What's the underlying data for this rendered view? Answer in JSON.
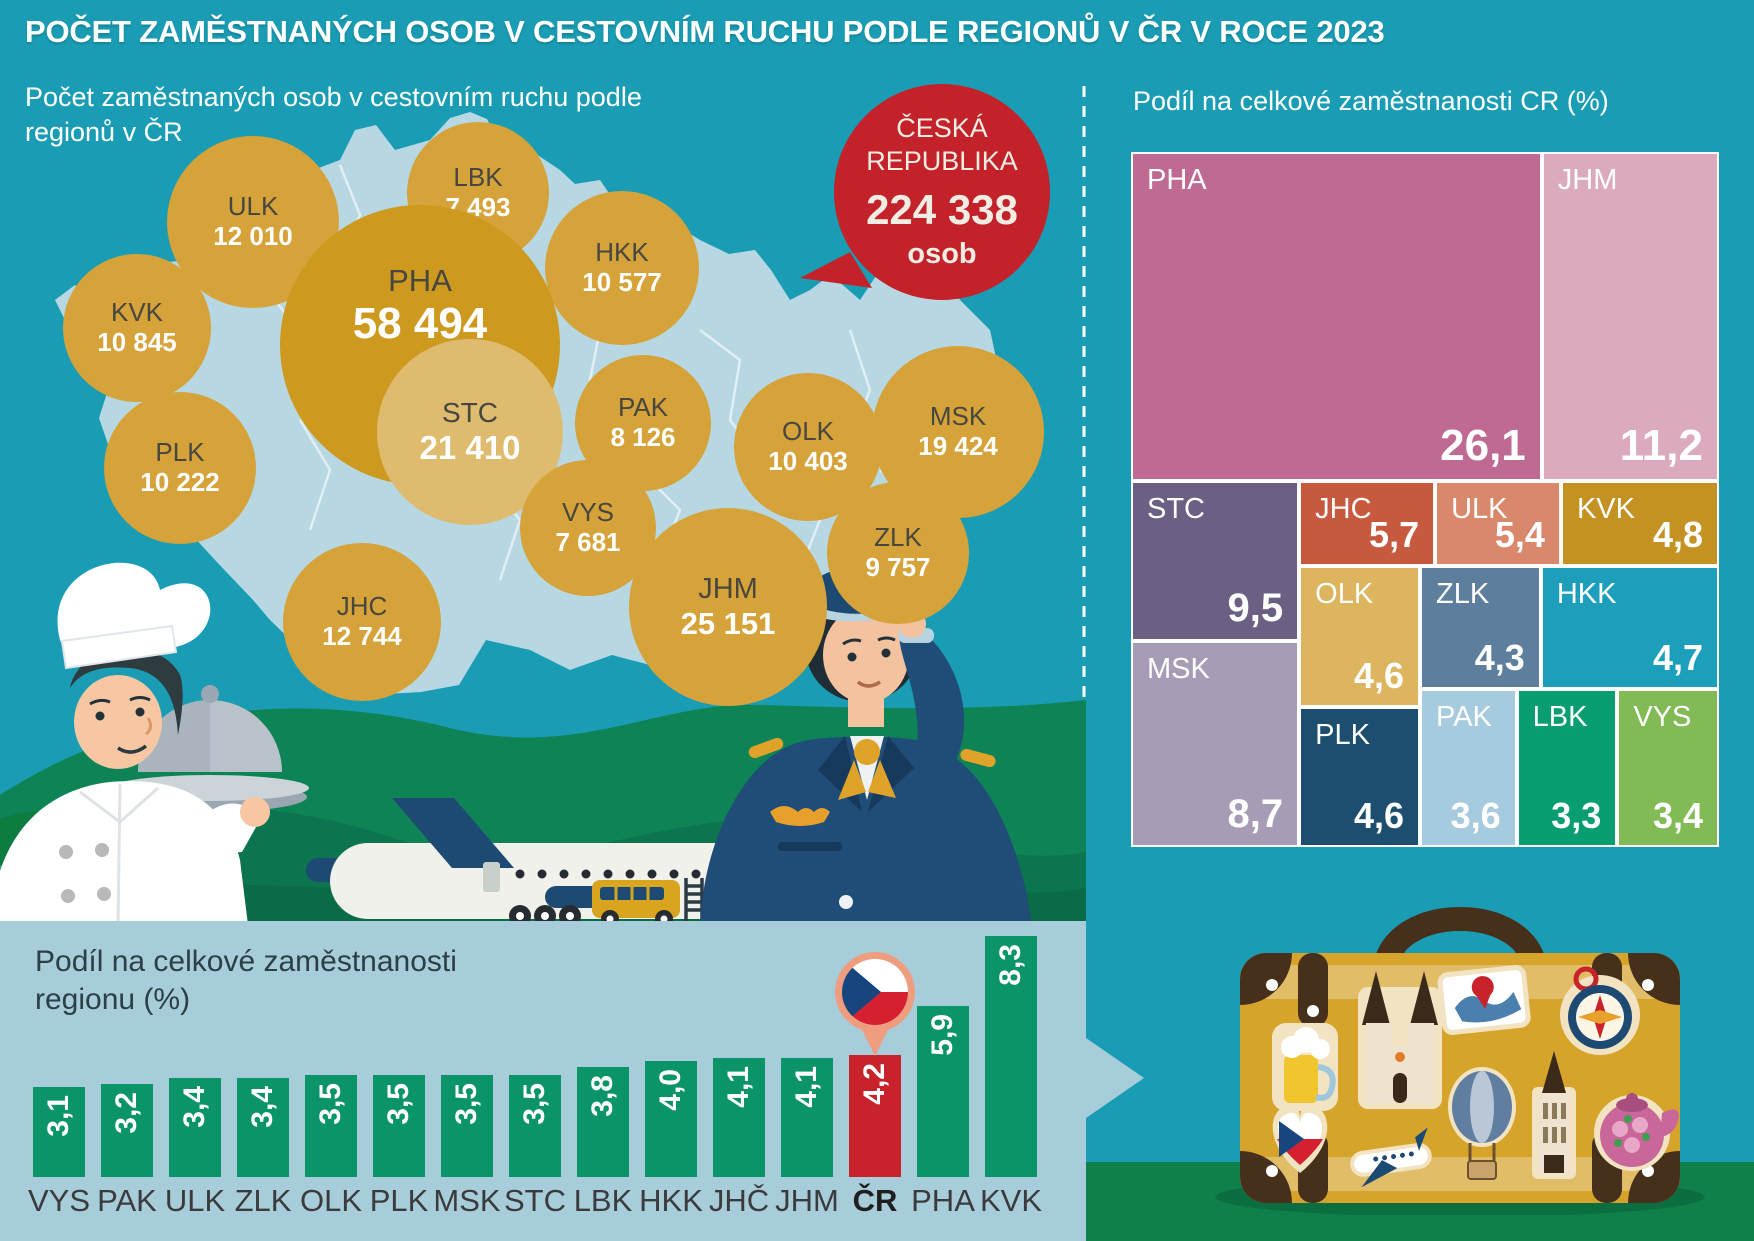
{
  "header": {
    "title": "POČET ZAMĚSTNANÝCH OSOB V CESTOVNÍM RUCHU PODLE REGIONŮ V ČR V ROCE 2023"
  },
  "map_section": {
    "subtitle_line1": "Počet zaměstnaných osob v cestovním ruchu podle",
    "subtitle_line2": "regionů v ČR",
    "total_bubble": {
      "line1": "ČESKÁ",
      "line2": "REPUBLIKA",
      "value": "224 338",
      "unit": "osob",
      "color": "#c3222a"
    },
    "colors": {
      "bubble": "#d5a339",
      "bubble_pha": "#cd9a1f",
      "bubble_stc": "#debb6e",
      "bubble_label": "#47463f",
      "bubble_value": "#ffffff"
    },
    "bubbles": [
      {
        "code": "KVK",
        "value": "10 845"
      },
      {
        "code": "ULK",
        "value": "12 010"
      },
      {
        "code": "LBK",
        "value": "7 493"
      },
      {
        "code": "HKK",
        "value": "10 577"
      },
      {
        "code": "PHA",
        "value": "58 494"
      },
      {
        "code": "STC",
        "value": "21 410"
      },
      {
        "code": "PLK",
        "value": "10 222"
      },
      {
        "code": "PAK",
        "value": "8 126"
      },
      {
        "code": "OLK",
        "value": "10 403"
      },
      {
        "code": "MSK",
        "value": "19 424"
      },
      {
        "code": "VYS",
        "value": "7 681"
      },
      {
        "code": "ZLK",
        "value": "9 757"
      },
      {
        "code": "JHC",
        "value": "12 744"
      },
      {
        "code": "JHM",
        "value": "25 151"
      }
    ]
  },
  "treemap_section": {
    "title": "Podíl na celkové zaměstnanosti CR (%)",
    "items": [
      {
        "code": "PHA",
        "value": "26,1",
        "color": "#bf6a92"
      },
      {
        "code": "JHM",
        "value": "11,2",
        "color": "#dcaabf"
      },
      {
        "code": "STC",
        "value": "9,5",
        "color": "#6b6084"
      },
      {
        "code": "MSK",
        "value": "8,7",
        "color": "#a79cb5"
      },
      {
        "code": "JHC",
        "value": "5,7",
        "color": "#c75a3e"
      },
      {
        "code": "ULK",
        "value": "5,4",
        "color": "#d9886c"
      },
      {
        "code": "KVK",
        "value": "4,8",
        "color": "#c49222"
      },
      {
        "code": "OLK",
        "value": "4,6",
        "color": "#dcb55e"
      },
      {
        "code": "ZLK",
        "value": "4,3",
        "color": "#5d7e9c"
      },
      {
        "code": "HKK",
        "value": "4,7",
        "color": "#1d9fbc"
      },
      {
        "code": "PLK",
        "value": "4,6",
        "color": "#1d4e70"
      },
      {
        "code": "PAK",
        "value": "3,6",
        "color": "#a7cbde"
      },
      {
        "code": "LBK",
        "value": "3,3",
        "color": "#089e72"
      },
      {
        "code": "VYS",
        "value": "3,4",
        "color": "#82bb55"
      }
    ]
  },
  "bar_section": {
    "title_line1": "Podíl na celkové zaměstnanosti",
    "title_line2": "regionu (%)",
    "bar_color": "#0b9468",
    "highlight_color": "#c8232b",
    "bars": [
      {
        "label": "VYS",
        "display": "3,1",
        "value": 3.1
      },
      {
        "label": "PAK",
        "display": "3,2",
        "value": 3.2
      },
      {
        "label": "ULK",
        "display": "3,4",
        "value": 3.4
      },
      {
        "label": "ZLK",
        "display": "3,4",
        "value": 3.4
      },
      {
        "label": "OLK",
        "display": "3,5",
        "value": 3.5
      },
      {
        "label": "PLK",
        "display": "3,5",
        "value": 3.5
      },
      {
        "label": "MSK",
        "display": "3,5",
        "value": 3.5
      },
      {
        "label": "STC",
        "display": "3,5",
        "value": 3.5
      },
      {
        "label": "LBK",
        "display": "3,8",
        "value": 3.8
      },
      {
        "label": "HKK",
        "display": "4,0",
        "value": 4.0
      },
      {
        "label": "JHČ",
        "display": "4,1",
        "value": 4.1
      },
      {
        "label": "JHM",
        "display": "4,1",
        "value": 4.1
      },
      {
        "label": "ČR",
        "display": "4,2",
        "value": 4.2,
        "highlight": true
      },
      {
        "label": "PHA",
        "display": "5,9",
        "value": 5.9
      },
      {
        "label": "KVK",
        "display": "8,3",
        "value": 8.3
      }
    ]
  },
  "chart_data": [
    {
      "type": "bubble-map",
      "title": "Počet zaměstnaných osob v cestovním ruchu podle regionů v ČR",
      "unit": "osob",
      "total": {
        "label": "ČESKÁ REPUBLIKA",
        "value": 224338
      },
      "points": [
        {
          "region": "PHA",
          "value": 58494
        },
        {
          "region": "STC",
          "value": 21410
        },
        {
          "region": "JHM",
          "value": 25151
        },
        {
          "region": "MSK",
          "value": 19424
        },
        {
          "region": "JHC",
          "value": 12744
        },
        {
          "region": "ULK",
          "value": 12010
        },
        {
          "region": "KVK",
          "value": 10845
        },
        {
          "region": "HKK",
          "value": 10577
        },
        {
          "region": "OLK",
          "value": 10403
        },
        {
          "region": "PLK",
          "value": 10222
        },
        {
          "region": "ZLK",
          "value": 9757
        },
        {
          "region": "PAK",
          "value": 8126
        },
        {
          "region": "VYS",
          "value": 7681
        },
        {
          "region": "LBK",
          "value": 7493
        }
      ]
    },
    {
      "type": "treemap",
      "title": "Podíl na celkové zaměstnanosti CR (%)",
      "points": [
        {
          "region": "PHA",
          "value": 26.1
        },
        {
          "region": "JHM",
          "value": 11.2
        },
        {
          "region": "STC",
          "value": 9.5
        },
        {
          "region": "MSK",
          "value": 8.7
        },
        {
          "region": "JHC",
          "value": 5.7
        },
        {
          "region": "ULK",
          "value": 5.4
        },
        {
          "region": "KVK",
          "value": 4.8
        },
        {
          "region": "HKK",
          "value": 4.7
        },
        {
          "region": "OLK",
          "value": 4.6
        },
        {
          "region": "PLK",
          "value": 4.6
        },
        {
          "region": "ZLK",
          "value": 4.3
        },
        {
          "region": "PAK",
          "value": 3.6
        },
        {
          "region": "VYS",
          "value": 3.4
        },
        {
          "region": "LBK",
          "value": 3.3
        }
      ]
    },
    {
      "type": "bar",
      "title": "Podíl na celkové zaměstnanosti regionu (%)",
      "categories": [
        "VYS",
        "PAK",
        "ULK",
        "ZLK",
        "OLK",
        "PLK",
        "MSK",
        "STC",
        "LBK",
        "HKK",
        "JHČ",
        "JHM",
        "ČR",
        "PHA",
        "KVK"
      ],
      "values": [
        3.1,
        3.2,
        3.4,
        3.4,
        3.5,
        3.5,
        3.5,
        3.5,
        3.8,
        4.0,
        4.1,
        4.1,
        4.2,
        5.9,
        8.3
      ],
      "highlight_category": "ČR",
      "ylim": [
        0,
        9
      ],
      "grid": false
    }
  ]
}
